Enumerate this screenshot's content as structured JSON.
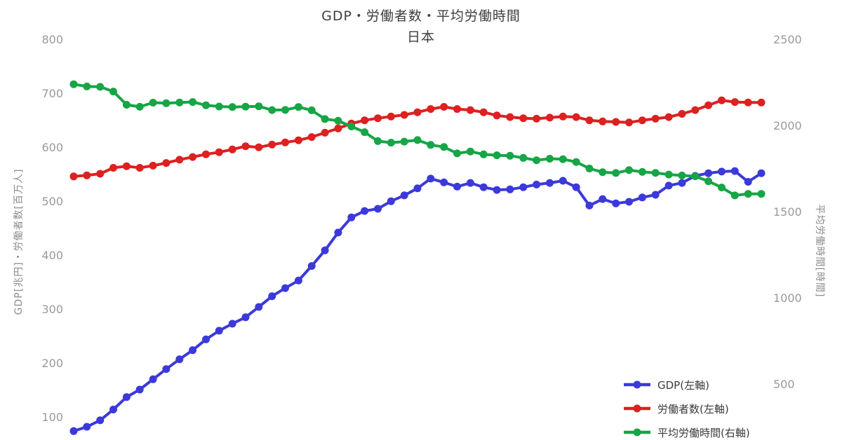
{
  "page": {
    "background": "#ffffff",
    "text_color": "#3d3d3d",
    "tick_color": "#9a9a9a",
    "axis_label_color": "#8c8c8c"
  },
  "chart_data": {
    "type": "line",
    "title": "GDP・労働者数・平均労働時間",
    "subtitle": "日本",
    "grid": false,
    "x_axis": {
      "tick_labels_visible": false,
      "point_count": 53
    },
    "left_axis": {
      "label": "GDP[兆円]・労働者数[百万人]",
      "ticks": [
        100,
        200,
        300,
        400,
        500,
        600,
        700,
        800
      ],
      "range": [
        50,
        800
      ]
    },
    "right_axis": {
      "label": "平均労働時間[時間]",
      "ticks": [
        500,
        1000,
        1500,
        2000,
        2500
      ],
      "range": [
        180,
        2500
      ]
    },
    "legend_position": "bottom-right",
    "series": [
      {
        "name": "GDP",
        "legend_label": "GDP(左軸)",
        "axis": "left",
        "color": "#3c39da",
        "values": [
          75,
          83,
          95,
          115,
          138,
          152,
          171,
          190,
          208,
          225,
          245,
          261,
          274,
          286,
          305,
          325,
          340,
          354,
          381,
          410,
          443,
          471,
          483,
          487,
          501,
          512,
          525,
          543,
          536,
          528,
          535,
          527,
          522,
          523,
          527,
          532,
          535,
          539,
          527,
          493,
          505,
          497,
          500,
          508,
          513,
          530,
          535,
          548,
          553,
          556,
          557,
          537,
          553
        ]
      },
      {
        "name": "労働者数",
        "legend_label": "労働者数(左軸)",
        "axis": "left",
        "color": "#dd2020",
        "values": [
          547,
          549,
          552,
          563,
          566,
          563,
          567,
          572,
          578,
          583,
          588,
          592,
          597,
          603,
          601,
          606,
          610,
          614,
          620,
          628,
          636,
          645,
          651,
          655,
          658,
          661,
          666,
          672,
          676,
          672,
          670,
          666,
          660,
          657,
          655,
          654,
          656,
          658,
          657,
          651,
          649,
          648,
          647,
          651,
          654,
          657,
          663,
          670,
          679,
          688,
          685,
          684,
          684
        ]
      },
      {
        "name": "平均労働時間",
        "legend_label": "平均労働時間(右軸)",
        "axis": "right",
        "color": "#17a546",
        "values": [
          2243,
          2230,
          2228,
          2201,
          2124,
          2112,
          2136,
          2133,
          2137,
          2140,
          2121,
          2114,
          2111,
          2113,
          2115,
          2093,
          2094,
          2111,
          2092,
          2041,
          2031,
          1998,
          1965,
          1913,
          1904,
          1910,
          1919,
          1891,
          1879,
          1842,
          1853,
          1836,
          1831,
          1828,
          1816,
          1802,
          1811,
          1808,
          1792,
          1754,
          1733,
          1728,
          1745,
          1734,
          1729,
          1719,
          1714,
          1709,
          1680,
          1644,
          1598,
          1607,
          1607
        ]
      }
    ]
  }
}
